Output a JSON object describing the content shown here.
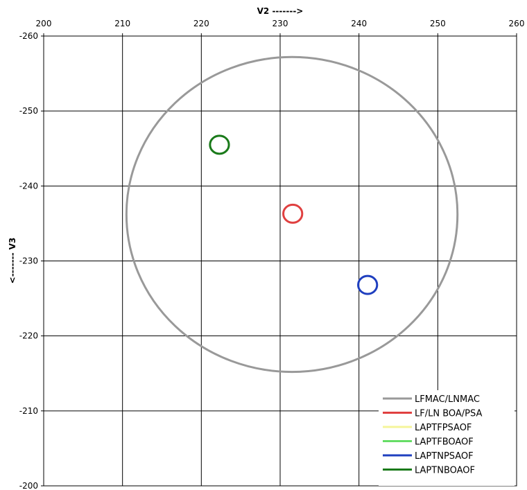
{
  "chart_data": {
    "type": "line",
    "xlabel": "V2 ------->",
    "ylabel": "<------- V3",
    "xlim": [
      200,
      260
    ],
    "ylim": [
      -260,
      -200
    ],
    "x_axis_position": "top",
    "y_axis_reversed": true,
    "x_ticks": [
      "200",
      "210",
      "220",
      "230",
      "240",
      "250",
      "260"
    ],
    "y_ticks": [
      "-260",
      "-250",
      "-240",
      "-230",
      "-220",
      "-210",
      "-200"
    ],
    "grid": true,
    "legend_position": "bottom-right",
    "series": [
      {
        "name": "LFMAC/LNMAC",
        "color": "#999999",
        "shape": "circle",
        "center": [
          231.5,
          -236.2
        ],
        "radius": 21.0,
        "visible": true
      },
      {
        "name": "LF/LN BOA/PSA",
        "color": "#e04040",
        "shape": "circle",
        "center": [
          231.6,
          -236.3
        ],
        "radius": 1.2,
        "visible": true
      },
      {
        "name": "LAPTFPSAOF",
        "color": "#f5f59a",
        "shape": "circle",
        "center": null,
        "radius": null,
        "visible": false
      },
      {
        "name": "LAPTFBOAOF",
        "color": "#66dd66",
        "shape": "circle",
        "center": null,
        "radius": null,
        "visible": false
      },
      {
        "name": "LAPTNPSAOF",
        "color": "#1f3fbf",
        "shape": "circle",
        "center": [
          241.1,
          -226.8
        ],
        "radius": 1.2,
        "visible": true
      },
      {
        "name": "LAPTNBOAOF",
        "color": "#1a7a1a",
        "shape": "circle",
        "center": [
          222.3,
          -245.5
        ],
        "radius": 1.2,
        "visible": true
      }
    ]
  }
}
